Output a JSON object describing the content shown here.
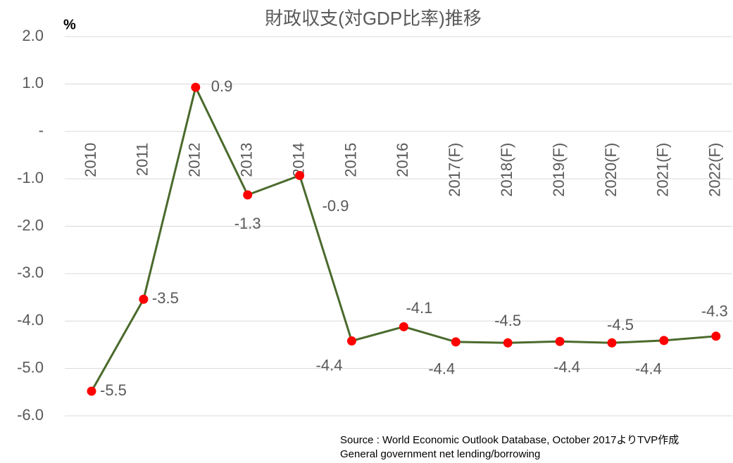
{
  "chart_data": {
    "type": "line",
    "title": "財政収支(対GDP比率)推移",
    "y_unit": "%",
    "source": "Source : World Economic Outlook Database, October 2017よりTVP作成",
    "note": "General government net lending/borrowing",
    "categories": [
      "2010",
      "2011",
      "2012",
      "2013",
      "2014",
      "2015",
      "2016",
      "2017(F)",
      "2018(F)",
      "2019(F)",
      "2020(F)",
      "2021(F)",
      "2022(F)"
    ],
    "series": [
      {
        "name": "財政収支",
        "color": "#4a6a2c",
        "marker_color": "#ff0000",
        "values": [
          -5.48,
          -3.54,
          0.93,
          -1.34,
          -0.93,
          -4.42,
          -4.12,
          -4.44,
          -4.46,
          -4.43,
          -4.46,
          -4.41,
          -4.32
        ],
        "value_labels": [
          "-5.5",
          "-3.5",
          "0.9",
          "-1.3",
          "-0.9",
          "-4.4",
          "-4.1",
          "-4.4",
          "-4.5",
          "-4.4",
          "-4.5",
          "-4.4",
          "-4.3"
        ]
      }
    ],
    "ylim": [
      -6,
      2
    ],
    "yticks": [
      {
        "value": 2,
        "label": "2.0"
      },
      {
        "value": 1,
        "label": "1.0"
      },
      {
        "value": 0,
        "label": "-"
      },
      {
        "value": -1,
        "label": "-1.0"
      },
      {
        "value": -2,
        "label": "-2.0"
      },
      {
        "value": -3,
        "label": "-3.0"
      },
      {
        "value": -4,
        "label": "-4.0"
      },
      {
        "value": -5,
        "label": "-5.0"
      },
      {
        "value": -6,
        "label": "-6.0"
      }
    ],
    "grid": true
  }
}
